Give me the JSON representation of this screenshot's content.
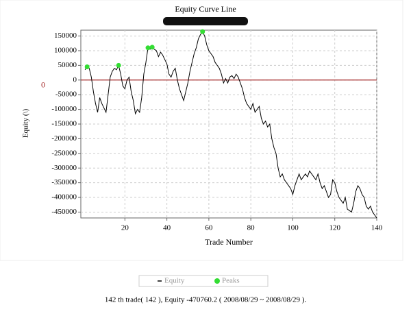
{
  "chart_data": {
    "type": "line",
    "title": "Equity Curve Line",
    "xlabel": "Trade Number",
    "ylabel": "Equity (\\)",
    "xlim": [
      -1,
      140
    ],
    "xticks": [
      20,
      40,
      60,
      80,
      100,
      120,
      140
    ],
    "ylim": [
      -470000,
      170000
    ],
    "yticks": [
      150000,
      100000,
      50000,
      0,
      -50000,
      -100000,
      -150000,
      -200000,
      -250000,
      -300000,
      -350000,
      -400000,
      -450000
    ],
    "grid": true,
    "reference_line": {
      "value": 0,
      "label": "0",
      "color": "#a52a2a"
    },
    "legend": "bottom",
    "series": [
      {
        "name": "Equity",
        "color": "#000000",
        "x": [
          1,
          2,
          3,
          4,
          5,
          6,
          7,
          8,
          9,
          10,
          11,
          12,
          13,
          14,
          15,
          16,
          17,
          18,
          19,
          20,
          21,
          22,
          23,
          24,
          25,
          26,
          27,
          28,
          29,
          30,
          31,
          32,
          33,
          34,
          35,
          36,
          37,
          38,
          39,
          40,
          41,
          42,
          43,
          44,
          45,
          46,
          47,
          48,
          49,
          50,
          51,
          52,
          53,
          54,
          55,
          56,
          57,
          58,
          59,
          60,
          61,
          62,
          63,
          64,
          65,
          66,
          67,
          68,
          69,
          70,
          71,
          72,
          73,
          74,
          75,
          76,
          77,
          78,
          79,
          80,
          81,
          82,
          83,
          84,
          85,
          86,
          87,
          88,
          89,
          90,
          91,
          92,
          93,
          94,
          95,
          96,
          97,
          98,
          99,
          100,
          101,
          102,
          103,
          104,
          105,
          106,
          107,
          108,
          109,
          110,
          111,
          112,
          113,
          114,
          115,
          116,
          117,
          118,
          119,
          120,
          121,
          122,
          123,
          124,
          125,
          126,
          127,
          128,
          129,
          130,
          131,
          132,
          133,
          134,
          135,
          136,
          137,
          138,
          139,
          140
        ],
        "values": [
          35000,
          45000,
          40000,
          10000,
          -40000,
          -80000,
          -110000,
          -60000,
          -80000,
          -95000,
          -110000,
          -50000,
          10000,
          30000,
          40000,
          35000,
          50000,
          20000,
          -20000,
          -30000,
          0,
          10000,
          -40000,
          -70000,
          -115000,
          -100000,
          -110000,
          -60000,
          20000,
          60000,
          110000,
          105000,
          112000,
          105000,
          100000,
          80000,
          95000,
          85000,
          70000,
          55000,
          20000,
          10000,
          30000,
          40000,
          0,
          -30000,
          -50000,
          -70000,
          -40000,
          -10000,
          30000,
          60000,
          90000,
          110000,
          140000,
          155000,
          165000,
          150000,
          120000,
          100000,
          90000,
          80000,
          60000,
          50000,
          40000,
          20000,
          -10000,
          5000,
          -10000,
          10000,
          15000,
          5000,
          20000,
          10000,
          -10000,
          -30000,
          -60000,
          -80000,
          -90000,
          -100000,
          -80000,
          -110000,
          -100000,
          -90000,
          -130000,
          -150000,
          -140000,
          -160000,
          -150000,
          -200000,
          -230000,
          -250000,
          -300000,
          -330000,
          -320000,
          -340000,
          -350000,
          -360000,
          -370000,
          -390000,
          -360000,
          -340000,
          -320000,
          -340000,
          -330000,
          -320000,
          -330000,
          -310000,
          -320000,
          -330000,
          -340000,
          -320000,
          -350000,
          -370000,
          -360000,
          -380000,
          -400000,
          -390000,
          -340000,
          -350000,
          -380000,
          -400000,
          -410000,
          -420000,
          -400000,
          -440000,
          -445000,
          -450000,
          -420000,
          -380000,
          -360000,
          -370000,
          -390000,
          -400000,
          -430000,
          -440000,
          -430000,
          -450000,
          -460000,
          -470000
        ]
      },
      {
        "name": "Peaks",
        "color": "#33dd33",
        "x": [
          2,
          17,
          31,
          33,
          57
        ],
        "values": [
          45000,
          50000,
          110000,
          112000,
          165000
        ]
      }
    ],
    "footer": "142 th trade( 142 ), Equity  -470760.2 ( 2008/08/29 ~ 2008/08/29 )."
  }
}
